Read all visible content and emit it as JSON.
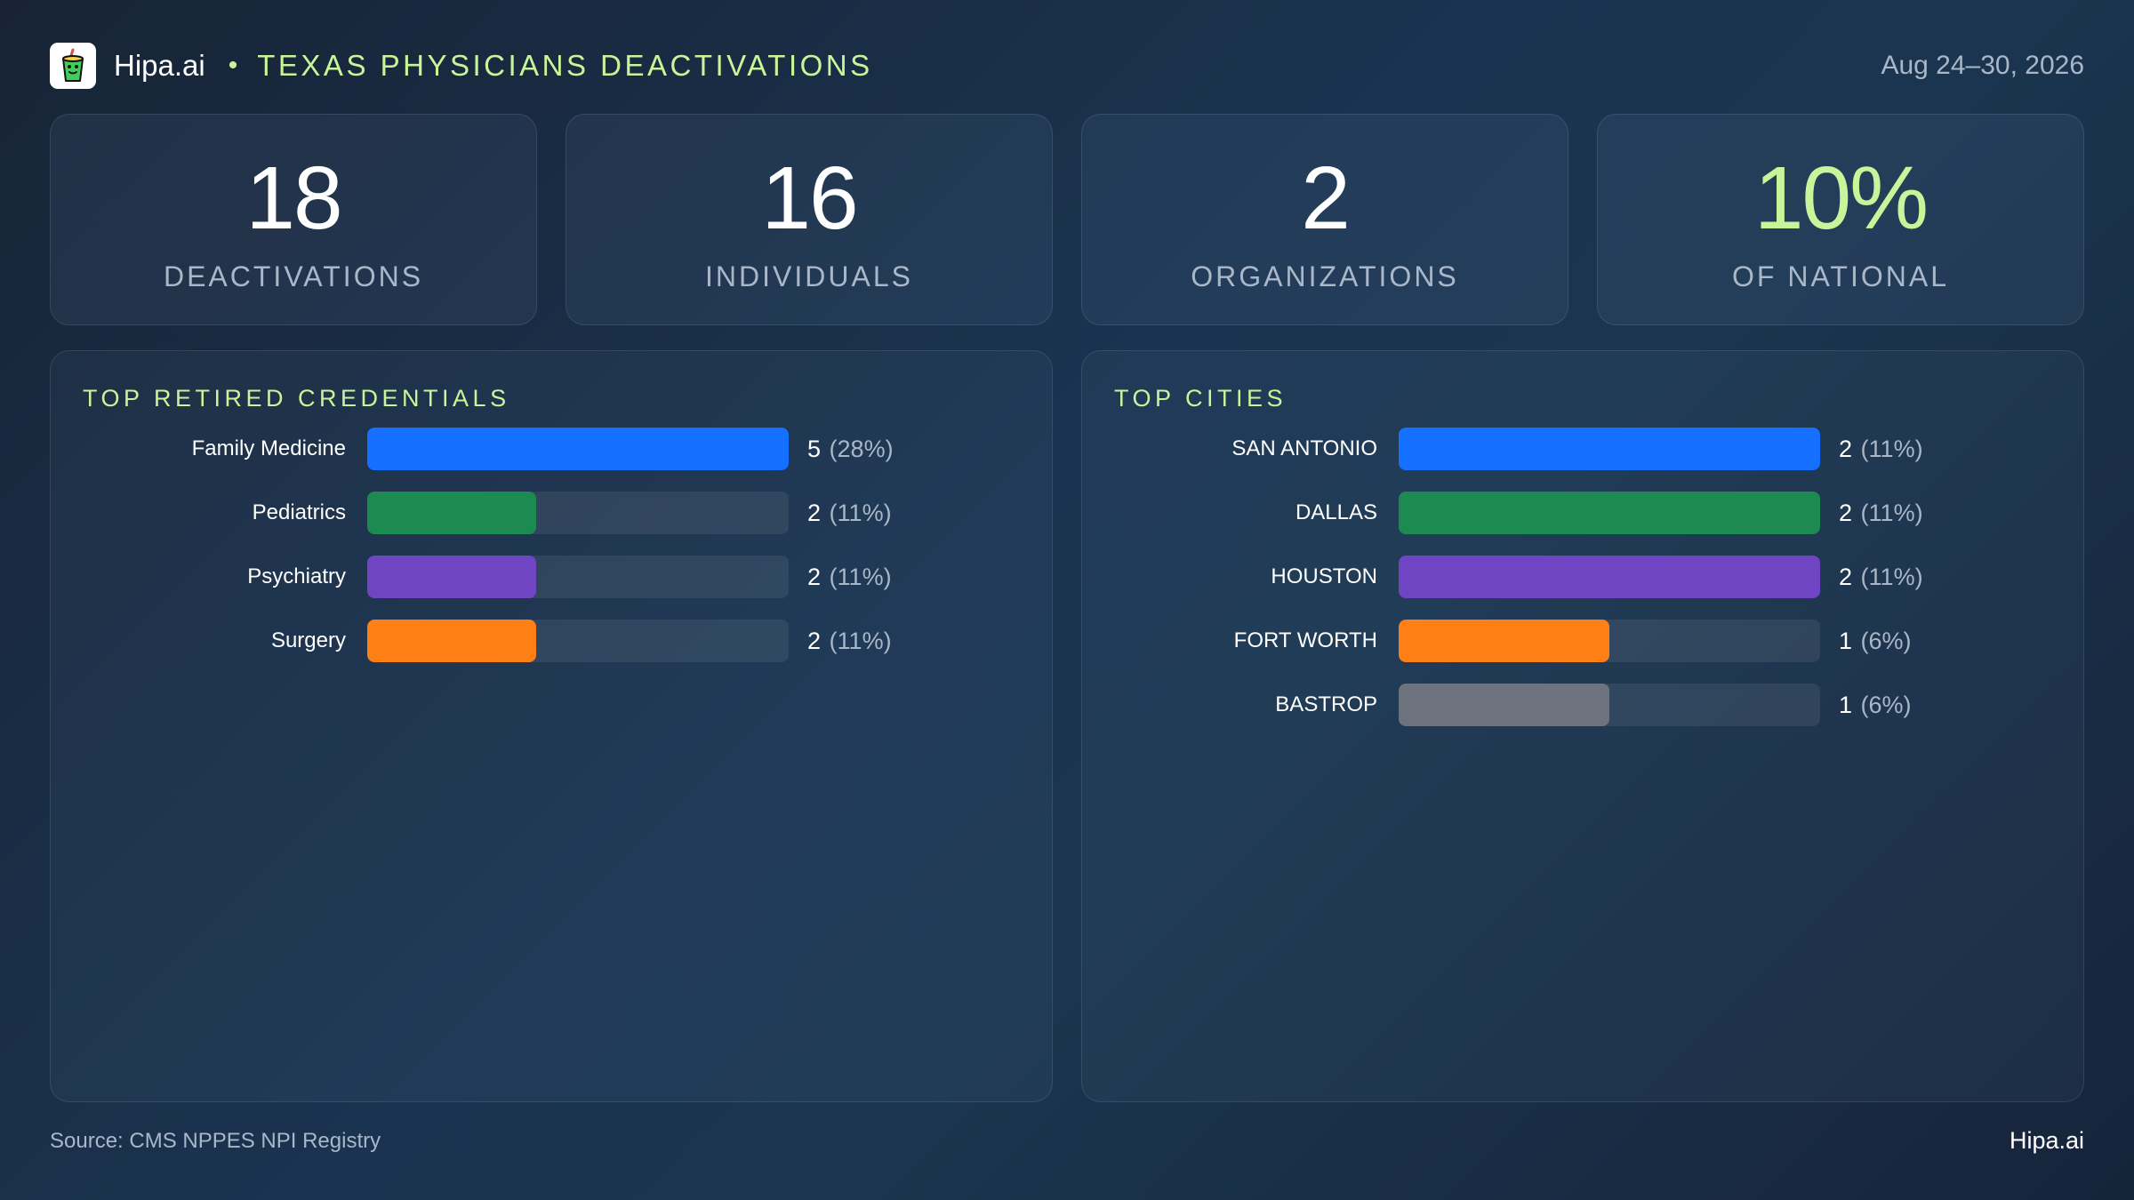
{
  "header": {
    "brand": "Hipa.ai",
    "separator": "•",
    "title": "TEXAS PHYSICIANS DEACTIVATIONS",
    "date_range": "Aug 24–30, 2026"
  },
  "kpis": [
    {
      "value": "18",
      "label": "DEACTIVATIONS"
    },
    {
      "value": "16",
      "label": "INDIVIDUALS"
    },
    {
      "value": "2",
      "label": "ORGANIZATIONS"
    },
    {
      "value": "10%",
      "label": "OF NATIONAL"
    }
  ],
  "colors": {
    "accent": "#c9f59a",
    "blue": "#1570ff",
    "green": "#1d8a52",
    "purple": "#6f45c4",
    "orange": "#ff7f17",
    "gray": "#6c737c"
  },
  "chart_data": [
    {
      "type": "bar",
      "orientation": "horizontal",
      "title": "TOP RETIRED CREDENTIALS",
      "categories": [
        "Family Medicine",
        "Pediatrics",
        "Psychiatry",
        "Surgery"
      ],
      "values": [
        5,
        2,
        2,
        2
      ],
      "percent_labels": [
        "(28%)",
        "(11%)",
        "(11%)",
        "(11%)"
      ],
      "colors": [
        "#1570ff",
        "#1d8a52",
        "#6f45c4",
        "#ff7f17"
      ],
      "xlim": [
        0,
        5
      ]
    },
    {
      "type": "bar",
      "orientation": "horizontal",
      "title": "TOP CITIES",
      "categories": [
        "SAN ANTONIO",
        "DALLAS",
        "HOUSTON",
        "FORT WORTH",
        "BASTROP"
      ],
      "values": [
        2,
        2,
        2,
        1,
        1
      ],
      "percent_labels": [
        "(11%)",
        "(11%)",
        "(11%)",
        "(6%)",
        "(6%)"
      ],
      "colors": [
        "#1570ff",
        "#1d8a52",
        "#6f45c4",
        "#ff7f17",
        "#6c737c"
      ],
      "xlim": [
        0,
        2
      ]
    }
  ],
  "footer": {
    "source": "Source: CMS NPPES NPI Registry",
    "brand": "Hipa.ai"
  }
}
